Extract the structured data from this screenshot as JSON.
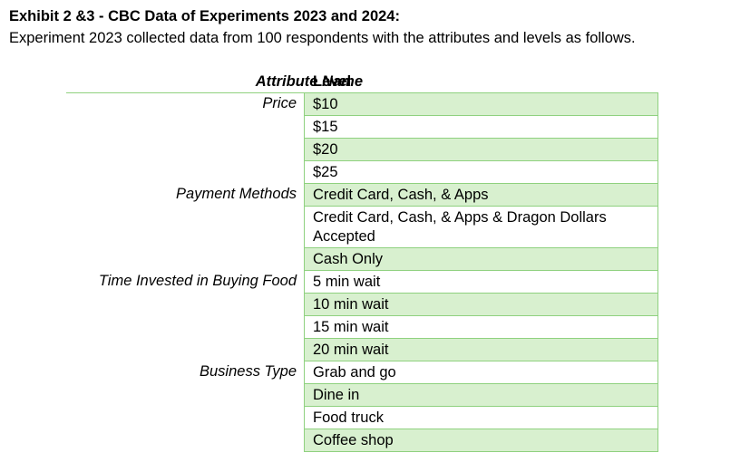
{
  "heading": "Exhibit 2 &3 - CBC Data of Experiments 2023 and 2024:",
  "intro": "Experiment 2023 collected data from 100 respondents with the attributes and levels as follows.",
  "table": {
    "header_attribute": "Attribute Name",
    "header_level": "Level",
    "rows": [
      {
        "attribute": "Price",
        "level": "$10"
      },
      {
        "attribute": "",
        "level": "$15"
      },
      {
        "attribute": "",
        "level": "$20"
      },
      {
        "attribute": "",
        "level": "$25"
      },
      {
        "attribute": "Payment Methods",
        "level": "Credit Card, Cash, & Apps"
      },
      {
        "attribute": "",
        "level": "Credit Card, Cash, & Apps & Dragon Dollars Accepted"
      },
      {
        "attribute": "",
        "level": "Cash Only"
      },
      {
        "attribute": "Time Invested in Buying Food",
        "level": "5 min wait"
      },
      {
        "attribute": "",
        "level": "10 min wait"
      },
      {
        "attribute": "",
        "level": "15 min wait"
      },
      {
        "attribute": "",
        "level": "20 min wait"
      },
      {
        "attribute": "Business Type",
        "level": "Grab and go"
      },
      {
        "attribute": "",
        "level": "Dine in"
      },
      {
        "attribute": "",
        "level": "Food truck"
      },
      {
        "attribute": "",
        "level": "Coffee shop"
      }
    ]
  },
  "colors": {
    "band_green": "#d8f0cf",
    "border_green": "#8fd17f"
  }
}
